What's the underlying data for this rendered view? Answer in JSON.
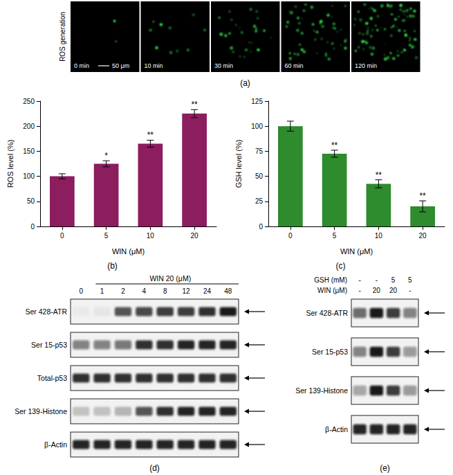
{
  "chart_data": [
    {
      "type": "bar",
      "title": "(b)",
      "x_label": "WIN (μM)",
      "y_label": "ROS level (%)",
      "categories": [
        "0",
        "5",
        "10",
        "20"
      ],
      "values": [
        100,
        125,
        165,
        225
      ],
      "errors": [
        5,
        6,
        7,
        8
      ],
      "annotations": [
        null,
        "*",
        "**",
        "**"
      ],
      "color": "#8c1d5f",
      "ylim": [
        0,
        250
      ],
      "yticks": [
        0,
        50,
        100,
        150,
        200,
        250
      ],
      "grid": false
    },
    {
      "type": "bar",
      "title": "(c)",
      "x_label": "WIN (μM)",
      "y_label": "GSH level (%)",
      "categories": [
        "0",
        "5",
        "10",
        "20"
      ],
      "values": [
        100,
        72.5,
        42.5,
        20
      ],
      "errors": [
        5,
        3.5,
        4,
        5.5
      ],
      "annotations": [
        null,
        "**",
        "**",
        "**"
      ],
      "color": "#2e8b2e",
      "ylim": [
        0,
        125
      ],
      "yticks": [
        0,
        25,
        50,
        75,
        100,
        125
      ],
      "grid": false
    }
  ],
  "image_panel": {
    "label": "(a)",
    "row_label": "ROS generation",
    "scale_bar": "50 μm",
    "frames": [
      "0 min",
      "10 min",
      "30 min",
      "60 min",
      "120 min"
    ]
  },
  "blots": [
    {
      "label": "(d)",
      "treatment": "WIN 20 (μM)",
      "lanes": [
        "0",
        "1",
        "2",
        "4",
        "8",
        "12",
        "24",
        "48"
      ],
      "rows": [
        {
          "name": "Ser 428-ATR",
          "bands": [
            0.03,
            0.05,
            0.7,
            0.75,
            0.8,
            0.8,
            0.85,
            0.95
          ]
        },
        {
          "name": "Ser 15-p53",
          "bands": [
            0.5,
            0.5,
            0.55,
            0.85,
            0.85,
            0.9,
            0.9,
            0.9
          ]
        },
        {
          "name": "Total-p53",
          "bands": [
            0.85,
            0.85,
            0.85,
            0.85,
            0.85,
            0.85,
            0.85,
            0.85
          ]
        },
        {
          "name": "Ser 139-Histone",
          "bands": [
            0.2,
            0.2,
            0.25,
            0.7,
            0.85,
            0.9,
            0.9,
            0.9
          ]
        },
        {
          "name": "β-Actin",
          "bands": [
            0.9,
            0.9,
            0.9,
            0.9,
            0.9,
            0.9,
            0.9,
            0.9
          ]
        }
      ]
    },
    {
      "label": "(e)",
      "conditions": [
        {
          "name": "GSH (mM)",
          "values": [
            "-",
            "-",
            "5",
            "5"
          ]
        },
        {
          "name": "WIN (μM)",
          "values": [
            "-",
            "20",
            "20",
            "-"
          ]
        }
      ],
      "rows": [
        {
          "name": "Ser 428-ATR",
          "bands": [
            0.6,
            0.95,
            0.8,
            0.5
          ]
        },
        {
          "name": "Ser 15-p53",
          "bands": [
            0.5,
            0.95,
            0.8,
            0.4
          ]
        },
        {
          "name": "Ser 139-Histone",
          "bands": [
            0.35,
            0.95,
            0.8,
            0.4
          ]
        },
        {
          "name": "β-Actin",
          "bands": [
            0.9,
            0.9,
            0.9,
            0.9
          ]
        }
      ]
    }
  ]
}
